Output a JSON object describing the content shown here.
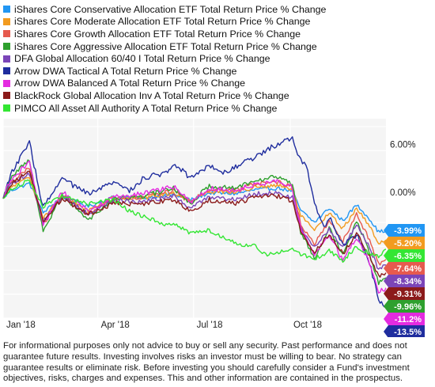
{
  "colors": {
    "plot_bg": "#f5f5f5",
    "grid": "#ffffff"
  },
  "chart_data": {
    "type": "line",
    "title": "",
    "xlabel": "",
    "ylabel": "",
    "x_start": "2018-01-01",
    "x_end": "2018-12-31",
    "x_ticks": [
      {
        "label": "Jan '18",
        "date": "2018-01-01"
      },
      {
        "label": "Apr '18",
        "date": "2018-04-01"
      },
      {
        "label": "Jul '18",
        "date": "2018-07-01"
      },
      {
        "label": "Oct '18",
        "date": "2018-10-01"
      }
    ],
    "y_ticks": [
      {
        "label": "6.00%",
        "value": 6
      },
      {
        "label": "0.00%",
        "value": 0
      }
    ],
    "ylim": [
      -15,
      10
    ],
    "grid": true,
    "legend_position": "top-left",
    "series": [
      {
        "name": "iShares Core Conservative Allocation ETF Total Return Price % Change",
        "color": "#2196f3",
        "end_label": "-3.99%",
        "end_value": -3.99,
        "points": [
          [
            "2018-01-01",
            0
          ],
          [
            "2018-01-08",
            1.0
          ],
          [
            "2018-01-26",
            1.9
          ],
          [
            "2018-02-08",
            -1.8
          ],
          [
            "2018-02-26",
            0.3
          ],
          [
            "2018-03-23",
            -1.0
          ],
          [
            "2018-04-16",
            0.2
          ],
          [
            "2018-05-15",
            0.1
          ],
          [
            "2018-06-12",
            0.5
          ],
          [
            "2018-06-28",
            -0.2
          ],
          [
            "2018-07-16",
            0.7
          ],
          [
            "2018-08-10",
            0.6
          ],
          [
            "2018-08-29",
            1.1
          ],
          [
            "2018-09-20",
            1.3
          ],
          [
            "2018-10-03",
            0.9
          ],
          [
            "2018-10-11",
            -1.5
          ],
          [
            "2018-10-24",
            -3.0
          ],
          [
            "2018-11-07",
            -1.2
          ],
          [
            "2018-11-20",
            -2.8
          ],
          [
            "2018-12-03",
            -0.8
          ],
          [
            "2018-12-14",
            -2.3
          ],
          [
            "2018-12-24",
            -4.2
          ],
          [
            "2018-12-31",
            -3.99
          ]
        ]
      },
      {
        "name": "iShares Core Moderate Allocation ETF Total Return Price % Change",
        "color": "#f29b1f",
        "end_label": "-5.20%",
        "end_value": -5.2,
        "points": [
          [
            "2018-01-01",
            0
          ],
          [
            "2018-01-08",
            1.4
          ],
          [
            "2018-01-26",
            2.6
          ],
          [
            "2018-02-08",
            -2.4
          ],
          [
            "2018-02-26",
            0.3
          ],
          [
            "2018-03-23",
            -1.5
          ],
          [
            "2018-04-16",
            0.1
          ],
          [
            "2018-05-15",
            0.1
          ],
          [
            "2018-06-12",
            0.7
          ],
          [
            "2018-06-28",
            -0.3
          ],
          [
            "2018-07-16",
            0.9
          ],
          [
            "2018-08-10",
            0.8
          ],
          [
            "2018-08-29",
            1.4
          ],
          [
            "2018-09-20",
            1.6
          ],
          [
            "2018-10-03",
            1.1
          ],
          [
            "2018-10-11",
            -2.2
          ],
          [
            "2018-10-24",
            -4.0
          ],
          [
            "2018-11-07",
            -1.8
          ],
          [
            "2018-11-20",
            -3.8
          ],
          [
            "2018-12-03",
            -1.2
          ],
          [
            "2018-12-14",
            -3.2
          ],
          [
            "2018-12-24",
            -5.6
          ],
          [
            "2018-12-31",
            -5.2
          ]
        ]
      },
      {
        "name": "iShares Core Growth Allocation ETF Total Return Price % Change",
        "color": "#e65a4e",
        "end_label": "-7.64%",
        "end_value": -7.64,
        "points": [
          [
            "2018-01-01",
            0
          ],
          [
            "2018-01-08",
            2.0
          ],
          [
            "2018-01-26",
            3.8
          ],
          [
            "2018-02-08",
            -3.3
          ],
          [
            "2018-02-26",
            0.4
          ],
          [
            "2018-03-23",
            -2.0
          ],
          [
            "2018-04-16",
            0.0
          ],
          [
            "2018-05-15",
            0.2
          ],
          [
            "2018-06-12",
            1.0
          ],
          [
            "2018-06-28",
            -0.5
          ],
          [
            "2018-07-16",
            1.2
          ],
          [
            "2018-08-10",
            1.0
          ],
          [
            "2018-08-29",
            1.9
          ],
          [
            "2018-09-20",
            2.1
          ],
          [
            "2018-10-03",
            1.4
          ],
          [
            "2018-10-11",
            -3.2
          ],
          [
            "2018-10-24",
            -5.8
          ],
          [
            "2018-11-07",
            -2.7
          ],
          [
            "2018-11-20",
            -5.4
          ],
          [
            "2018-12-03",
            -2.0
          ],
          [
            "2018-12-14",
            -4.8
          ],
          [
            "2018-12-24",
            -8.2
          ],
          [
            "2018-12-31",
            -7.64
          ]
        ]
      },
      {
        "name": "iShares Core Aggressive Allocation ETF Total Return Price % Change",
        "color": "#2ea02e",
        "end_label": "-9.96%",
        "end_value": -9.96,
        "points": [
          [
            "2018-01-01",
            0
          ],
          [
            "2018-01-08",
            2.6
          ],
          [
            "2018-01-26",
            4.9
          ],
          [
            "2018-02-08",
            -4.2
          ],
          [
            "2018-02-26",
            0.5
          ],
          [
            "2018-03-23",
            -2.6
          ],
          [
            "2018-04-16",
            -0.1
          ],
          [
            "2018-05-15",
            0.3
          ],
          [
            "2018-06-12",
            1.3
          ],
          [
            "2018-06-28",
            -0.6
          ],
          [
            "2018-07-16",
            1.6
          ],
          [
            "2018-08-10",
            1.3
          ],
          [
            "2018-08-29",
            2.4
          ],
          [
            "2018-09-20",
            2.7
          ],
          [
            "2018-10-03",
            1.8
          ],
          [
            "2018-10-11",
            -4.2
          ],
          [
            "2018-10-24",
            -7.4
          ],
          [
            "2018-11-07",
            -3.6
          ],
          [
            "2018-11-20",
            -7.0
          ],
          [
            "2018-12-03",
            -2.8
          ],
          [
            "2018-12-14",
            -6.2
          ],
          [
            "2018-12-24",
            -10.6
          ],
          [
            "2018-12-31",
            -9.96
          ]
        ]
      },
      {
        "name": "DFA Global Allocation 60/40 I Total Return Price % Change",
        "color": "#7b45b8",
        "end_label": "-8.34%",
        "end_value": -8.34,
        "points": [
          [
            "2018-01-01",
            0
          ],
          [
            "2018-01-08",
            1.7
          ],
          [
            "2018-01-26",
            3.2
          ],
          [
            "2018-02-08",
            -2.9
          ],
          [
            "2018-02-26",
            0.2
          ],
          [
            "2018-03-23",
            -1.9
          ],
          [
            "2018-04-16",
            -0.3
          ],
          [
            "2018-05-15",
            -0.4
          ],
          [
            "2018-06-12",
            0.3
          ],
          [
            "2018-06-28",
            -1.2
          ],
          [
            "2018-07-16",
            0.2
          ],
          [
            "2018-08-10",
            -0.1
          ],
          [
            "2018-08-29",
            0.6
          ],
          [
            "2018-09-20",
            0.7
          ],
          [
            "2018-10-03",
            0.1
          ],
          [
            "2018-10-11",
            -3.8
          ],
          [
            "2018-10-24",
            -6.2
          ],
          [
            "2018-11-07",
            -3.8
          ],
          [
            "2018-11-20",
            -6.2
          ],
          [
            "2018-12-03",
            -3.4
          ],
          [
            "2018-12-14",
            -5.8
          ],
          [
            "2018-12-24",
            -8.9
          ],
          [
            "2018-12-31",
            -8.34
          ]
        ]
      },
      {
        "name": "Arrow DWA Tactical A Total Return Price % Change",
        "color": "#1f2d9e",
        "end_label": "-13.5%",
        "end_value": -13.5,
        "points": [
          [
            "2018-01-01",
            0
          ],
          [
            "2018-01-08",
            3.0
          ],
          [
            "2018-01-26",
            7.0
          ],
          [
            "2018-02-08",
            -1.2
          ],
          [
            "2018-02-26",
            2.5
          ],
          [
            "2018-03-23",
            0.5
          ],
          [
            "2018-04-16",
            2.0
          ],
          [
            "2018-05-01",
            1.0
          ],
          [
            "2018-05-15",
            2.6
          ],
          [
            "2018-06-05",
            3.2
          ],
          [
            "2018-06-12",
            4.5
          ],
          [
            "2018-06-28",
            2.6
          ],
          [
            "2018-07-16",
            4.2
          ],
          [
            "2018-08-01",
            3.2
          ],
          [
            "2018-08-10",
            4.0
          ],
          [
            "2018-08-29",
            5.2
          ],
          [
            "2018-09-13",
            6.4
          ],
          [
            "2018-09-24",
            7.2
          ],
          [
            "2018-10-03",
            7.6
          ],
          [
            "2018-10-05",
            6.8
          ],
          [
            "2018-10-11",
            4.8
          ],
          [
            "2018-10-16",
            4.4
          ],
          [
            "2018-10-24",
            -0.6
          ],
          [
            "2018-11-02",
            -3.6
          ],
          [
            "2018-11-07",
            -2.3
          ],
          [
            "2018-11-20",
            -5.8
          ],
          [
            "2018-12-03",
            -4.6
          ],
          [
            "2018-12-14",
            -7.4
          ],
          [
            "2018-12-24",
            -12.6
          ],
          [
            "2018-12-31",
            -13.5
          ]
        ]
      },
      {
        "name": "Arrow DWA Balanced A Total Return Price % Change",
        "color": "#e42be0",
        "end_label": "-11.2%",
        "end_value": -11.2,
        "points": [
          [
            "2018-01-01",
            0
          ],
          [
            "2018-01-08",
            2.4
          ],
          [
            "2018-01-26",
            4.6
          ],
          [
            "2018-02-08",
            -3.5
          ],
          [
            "2018-02-26",
            0.8
          ],
          [
            "2018-03-23",
            -1.6
          ],
          [
            "2018-04-16",
            0.2
          ],
          [
            "2018-05-15",
            0.6
          ],
          [
            "2018-06-12",
            1.5
          ],
          [
            "2018-06-28",
            -0.5
          ],
          [
            "2018-07-16",
            1.3
          ],
          [
            "2018-08-10",
            1.0
          ],
          [
            "2018-08-29",
            1.8
          ],
          [
            "2018-09-20",
            2.2
          ],
          [
            "2018-10-03",
            1.4
          ],
          [
            "2018-10-11",
            -3.8
          ],
          [
            "2018-10-24",
            -7.2
          ],
          [
            "2018-11-07",
            -4.4
          ],
          [
            "2018-11-20",
            -7.8
          ],
          [
            "2018-12-03",
            -5.0
          ],
          [
            "2018-12-14",
            -7.6
          ],
          [
            "2018-12-24",
            -11.8
          ],
          [
            "2018-12-31",
            -11.2
          ]
        ]
      },
      {
        "name": "BlackRock Global Allocation Inv A Total Return Price % Change",
        "color": "#8b1a1a",
        "end_label": "-9.31%",
        "end_value": -9.31,
        "points": [
          [
            "2018-01-01",
            0
          ],
          [
            "2018-01-08",
            1.8
          ],
          [
            "2018-01-26",
            3.4
          ],
          [
            "2018-02-08",
            -2.8
          ],
          [
            "2018-02-26",
            0.0
          ],
          [
            "2018-03-23",
            -2.0
          ],
          [
            "2018-04-16",
            -0.6
          ],
          [
            "2018-05-15",
            -0.7
          ],
          [
            "2018-06-12",
            -0.1
          ],
          [
            "2018-06-28",
            -1.6
          ],
          [
            "2018-07-16",
            -0.2
          ],
          [
            "2018-08-10",
            -0.6
          ],
          [
            "2018-08-29",
            0.2
          ],
          [
            "2018-09-20",
            0.3
          ],
          [
            "2018-10-03",
            -0.3
          ],
          [
            "2018-10-11",
            -4.2
          ],
          [
            "2018-10-24",
            -6.8
          ],
          [
            "2018-11-07",
            -4.4
          ],
          [
            "2018-11-20",
            -7.0
          ],
          [
            "2018-12-03",
            -4.4
          ],
          [
            "2018-12-14",
            -6.8
          ],
          [
            "2018-12-24",
            -9.8
          ],
          [
            "2018-12-31",
            -9.31
          ]
        ]
      },
      {
        "name": "PIMCO All Asset All Authority A Total Return Price % Change",
        "color": "#33e633",
        "end_label": "-6.35%",
        "end_value": -6.35,
        "points": [
          [
            "2018-01-01",
            0
          ],
          [
            "2018-01-08",
            1.1
          ],
          [
            "2018-01-26",
            2.3
          ],
          [
            "2018-02-08",
            -1.0
          ],
          [
            "2018-02-26",
            0.3
          ],
          [
            "2018-03-23",
            -0.7
          ],
          [
            "2018-04-16",
            -0.1
          ],
          [
            "2018-05-01",
            -1.6
          ],
          [
            "2018-05-15",
            -2.3
          ],
          [
            "2018-06-05",
            -3.3
          ],
          [
            "2018-06-12",
            -3.0
          ],
          [
            "2018-06-28",
            -4.4
          ],
          [
            "2018-07-16",
            -4.0
          ],
          [
            "2018-08-01",
            -5.0
          ],
          [
            "2018-08-10",
            -5.6
          ],
          [
            "2018-08-29",
            -6.0
          ],
          [
            "2018-09-06",
            -7.0
          ],
          [
            "2018-09-20",
            -6.8
          ],
          [
            "2018-10-03",
            -6.2
          ],
          [
            "2018-10-11",
            -7.0
          ],
          [
            "2018-10-24",
            -7.6
          ],
          [
            "2018-11-07",
            -6.6
          ],
          [
            "2018-11-20",
            -7.8
          ],
          [
            "2018-12-03",
            -6.0
          ],
          [
            "2018-12-14",
            -6.8
          ],
          [
            "2018-12-24",
            -7.2
          ],
          [
            "2018-12-31",
            -6.35
          ]
        ]
      }
    ]
  },
  "disclaimer": "For informational purposes only not advice to buy or sell any security. Past performance and does not guarantee future results. Investing involves risks an investor must be willing to bear. No strategy can guarantee results or eliminate risk. Before investing you should carefully consider a Fund's investment objectives, risks, charges and expenses. This and other information are contained in the prospectus."
}
